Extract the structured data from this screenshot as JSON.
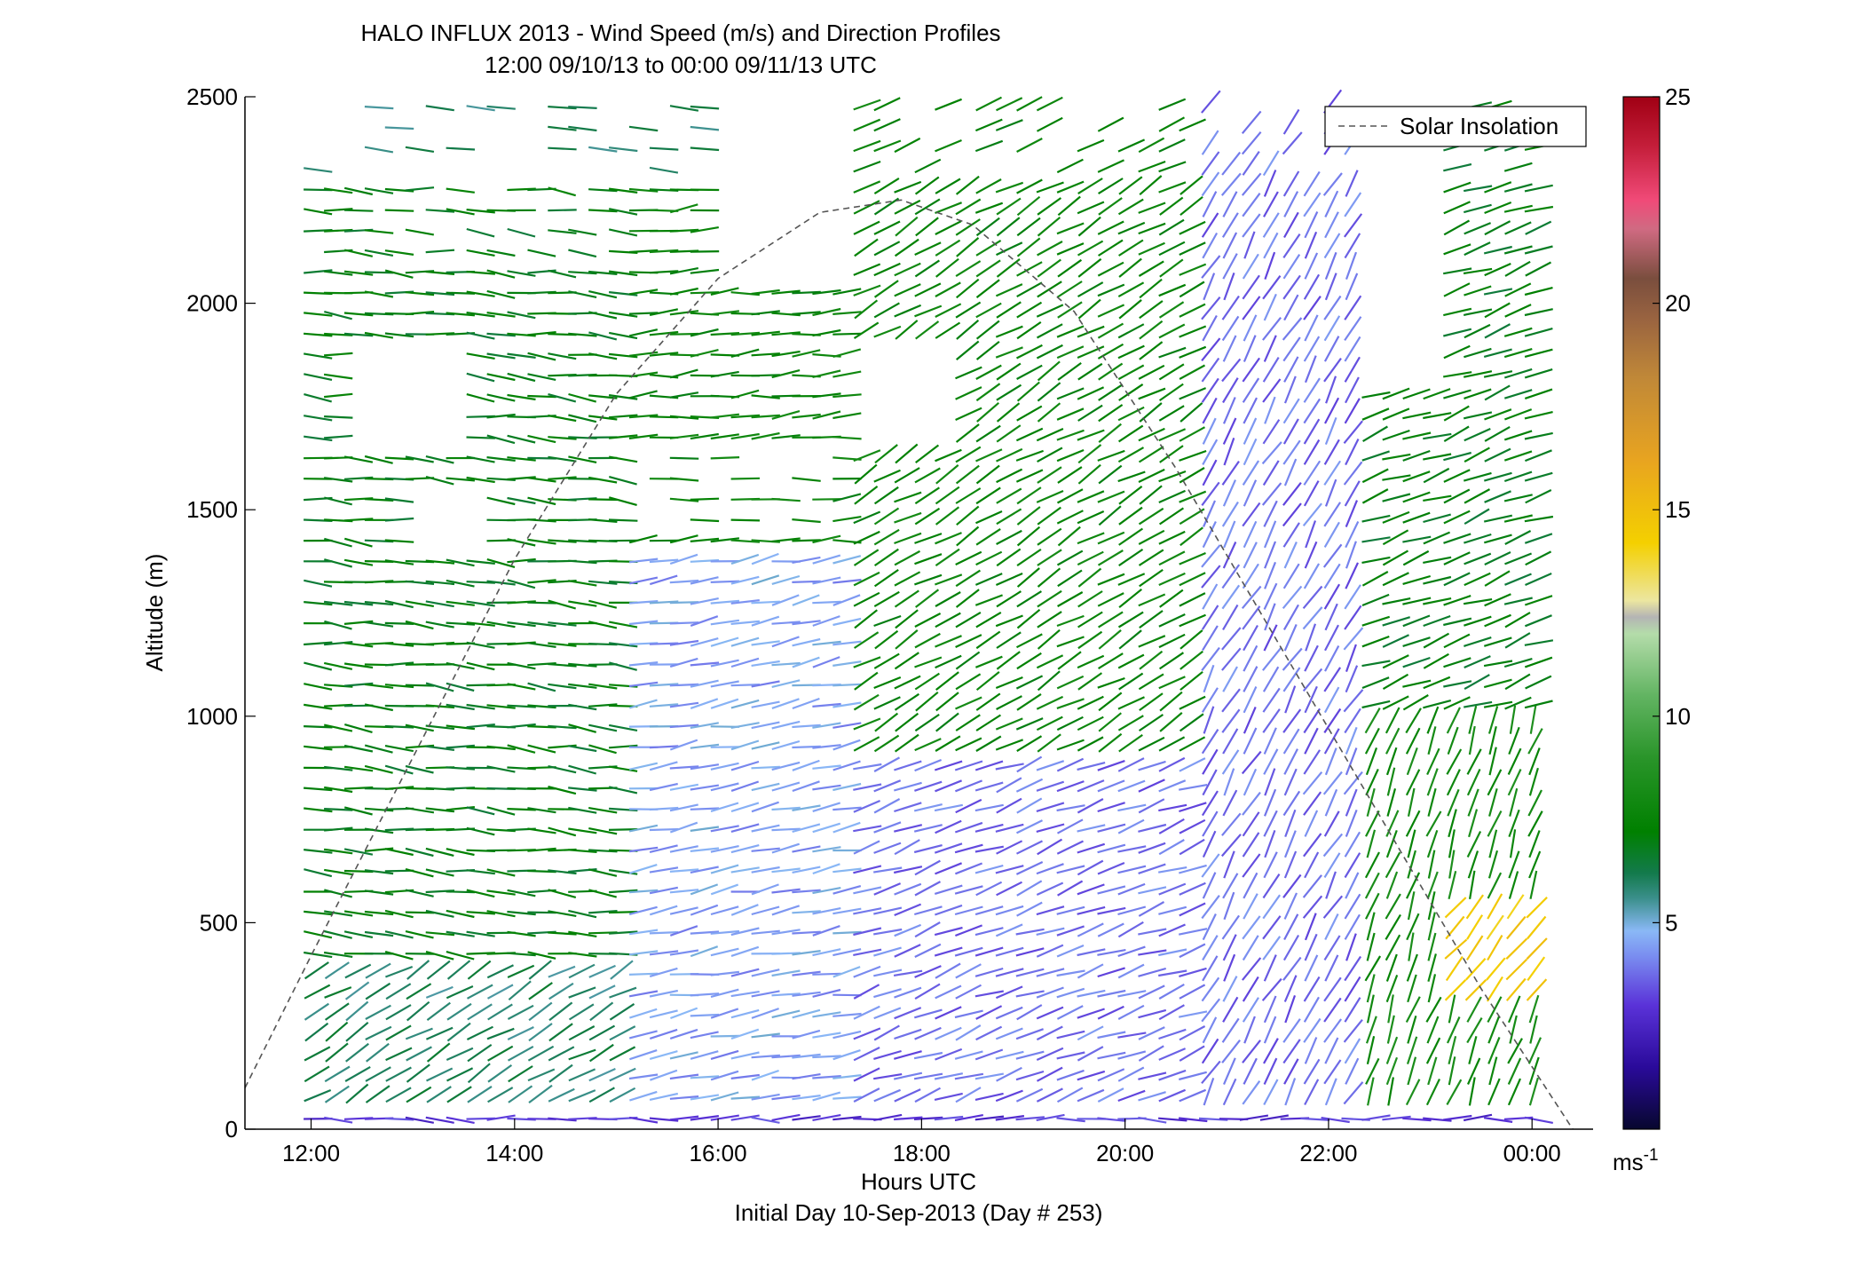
{
  "chart_data": {
    "type": "wind-barb-profile",
    "title": "HALO INFLUX 2013 - Wind Speed (m/s) and Direction Profiles",
    "subtitle": "12:00 09/10/13 to 00:00 09/11/13  UTC",
    "xlabel": "Hours UTC",
    "xlabel2": "Initial Day 10-Sep-2013 (Day # 253)",
    "ylabel": "Altitude (m)",
    "xlim": [
      11.35,
      24.6
    ],
    "ylim": [
      0,
      2500
    ],
    "x_ticks": [
      {
        "value": 12,
        "label": "12:00"
      },
      {
        "value": 14,
        "label": "14:00"
      },
      {
        "value": 16,
        "label": "16:00"
      },
      {
        "value": 18,
        "label": "18:00"
      },
      {
        "value": 20,
        "label": "20:00"
      },
      {
        "value": 22,
        "label": "22:00"
      },
      {
        "value": 24,
        "label": "00:00"
      }
    ],
    "y_ticks": [
      {
        "value": 0,
        "label": "0"
      },
      {
        "value": 500,
        "label": "500"
      },
      {
        "value": 1000,
        "label": "1000"
      },
      {
        "value": 1500,
        "label": "1500"
      },
      {
        "value": 2000,
        "label": "2000"
      },
      {
        "value": 2500,
        "label": "2500"
      }
    ],
    "legend": {
      "label": "Solar Insolation",
      "position": "top-right",
      "line_style": "dashed",
      "color": "#555555"
    },
    "solar_insolation": {
      "x": [
        11.35,
        12.0,
        13.0,
        14.0,
        15.0,
        16.0,
        17.0,
        17.8,
        18.5,
        19.5,
        20.5,
        21.5,
        22.5,
        23.5,
        24.4
      ],
      "y": [
        100,
        420,
        900,
        1380,
        1780,
        2060,
        2220,
        2250,
        2190,
        1980,
        1600,
        1180,
        760,
        340,
        0
      ]
    },
    "colorbar": {
      "label": "ms",
      "label_superscript": "-1",
      "range": [
        0,
        25
      ],
      "ticks": [
        {
          "value": 5,
          "label": "5"
        },
        {
          "value": 10,
          "label": "10"
        },
        {
          "value": 15,
          "label": "15"
        },
        {
          "value": 20,
          "label": "20"
        },
        {
          "value": 25,
          "label": "25"
        }
      ],
      "stops": [
        {
          "value": 0,
          "color": "#07072e"
        },
        {
          "value": 1.5,
          "color": "#2a0a9a"
        },
        {
          "value": 3,
          "color": "#5a32d8"
        },
        {
          "value": 4.2,
          "color": "#7a8ef0"
        },
        {
          "value": 4.8,
          "color": "#8ab8f6"
        },
        {
          "value": 5.6,
          "color": "#3a8f8a"
        },
        {
          "value": 6.2,
          "color": "#137a4c"
        },
        {
          "value": 7.2,
          "color": "#008000"
        },
        {
          "value": 9,
          "color": "#2a952a"
        },
        {
          "value": 10.5,
          "color": "#62b462"
        },
        {
          "value": 12,
          "color": "#b4dcaa"
        },
        {
          "value": 12.4,
          "color": "#b4b4b4"
        },
        {
          "value": 12.8,
          "color": "#ece6a0"
        },
        {
          "value": 14.2,
          "color": "#f4d000"
        },
        {
          "value": 16.2,
          "color": "#e8a420"
        },
        {
          "value": 18.2,
          "color": "#c08838"
        },
        {
          "value": 19.6,
          "color": "#9a6440"
        },
        {
          "value": 20.6,
          "color": "#7a4e3e"
        },
        {
          "value": 21.8,
          "color": "#d06a82"
        },
        {
          "value": 22.5,
          "color": "#f04a78"
        },
        {
          "value": 23.8,
          "color": "#c41e3a"
        },
        {
          "value": 25,
          "color": "#a00014"
        }
      ]
    },
    "profile_times": [
      12.0,
      12.2,
      12.4,
      12.6,
      12.8,
      13.0,
      13.2,
      13.4,
      13.6,
      13.8,
      14.0,
      14.2,
      14.4,
      14.6,
      14.8,
      15.0,
      15.2,
      15.4,
      15.6,
      15.8,
      16.0,
      16.2,
      16.4,
      16.6,
      16.8,
      17.0,
      17.2,
      17.4,
      17.6,
      17.8,
      18.0,
      18.2,
      18.4,
      18.6,
      18.8,
      19.0,
      19.2,
      19.4,
      19.6,
      19.8,
      20.0,
      20.2,
      20.4,
      20.6,
      20.8,
      21.0,
      21.2,
      21.4,
      21.6,
      21.8,
      22.0,
      22.2,
      22.4,
      22.6,
      22.8,
      23.0,
      23.2,
      23.4,
      23.6,
      23.8,
      24.0
    ],
    "profile_altitudes": [
      25,
      75,
      125,
      175,
      225,
      275,
      325,
      375,
      425,
      475,
      525,
      575,
      625,
      675,
      725,
      775,
      825,
      875,
      925,
      975,
      1025,
      1075,
      1125,
      1175,
      1225,
      1275,
      1325,
      1375,
      1425,
      1475,
      1525,
      1575,
      1625,
      1675,
      1725,
      1775,
      1825,
      1875,
      1925,
      1975,
      2025,
      2075,
      2125,
      2175,
      2225,
      2275,
      2325,
      2375,
      2425,
      2475
    ],
    "wind_model": {
      "description": "Approximate wind speed (m/s) and direction (deg, direction toward which wind blows measured clockwise from north) estimated from barb colors and orientations; sampled every 0.2 h and 50 m.",
      "regimes": [
        {
          "hours": [
            12.0,
            15.0
          ],
          "alt_range": [
            400,
            2300
          ],
          "speed": 7.0,
          "direction": 95
        },
        {
          "hours": [
            12.0,
            15.0
          ],
          "alt_range": [
            0,
            400
          ],
          "speed": 6.0,
          "direction": 60
        },
        {
          "hours": [
            15.0,
            17.2
          ],
          "alt_range": [
            0,
            1400
          ],
          "speed": 4.5,
          "direction": 80
        },
        {
          "hours": [
            15.0,
            17.2
          ],
          "alt_range": [
            1400,
            2300
          ],
          "speed": 7.5,
          "direction": 85
        },
        {
          "hours": [
            17.2,
            20.6
          ],
          "alt_range": [
            0,
            900
          ],
          "speed": 3.8,
          "direction": 70
        },
        {
          "hours": [
            17.2,
            20.6
          ],
          "alt_range": [
            900,
            2500
          ],
          "speed": 7.5,
          "direction": 60
        },
        {
          "hours": [
            20.6,
            22.2
          ],
          "alt_range": [
            0,
            2500
          ],
          "speed": 3.8,
          "direction": 30
        },
        {
          "hours": [
            22.2,
            24.0
          ],
          "alt_range": [
            0,
            1000
          ],
          "speed": 8.0,
          "direction": 20
        },
        {
          "hours": [
            22.2,
            24.0
          ],
          "alt_range": [
            1000,
            2500
          ],
          "speed": 7.0,
          "direction": 70
        }
      ],
      "near_surface_speed": 3.0,
      "late_low_level_jet": {
        "hours": [
          23.2,
          24.0
        ],
        "alt_range": [
          300,
          550
        ],
        "speed": 14.5,
        "direction": 40
      }
    }
  }
}
